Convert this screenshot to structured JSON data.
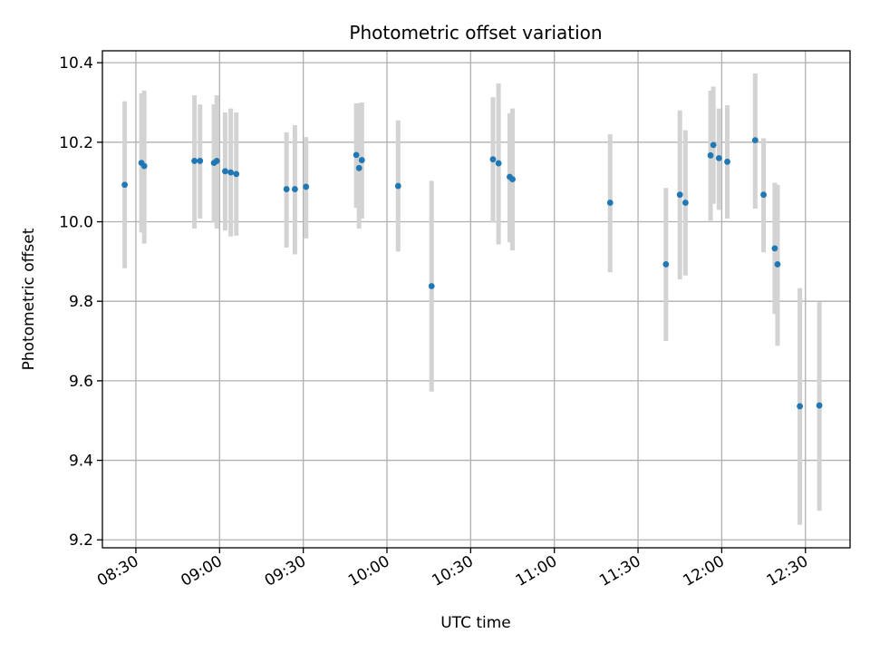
{
  "chart_data": {
    "type": "scatter",
    "title": "Photometric offset variation",
    "xlabel": "UTC time",
    "ylabel": "Photometric offset",
    "xlim": [
      "08:18",
      "12:46"
    ],
    "ylim": [
      9.18,
      10.43
    ],
    "grid": true,
    "x_ticks": [
      "08:30",
      "09:00",
      "09:30",
      "10:00",
      "10:30",
      "11:00",
      "11:30",
      "12:00",
      "12:30"
    ],
    "y_ticks": [
      9.2,
      9.4,
      9.6,
      9.8,
      10.0,
      10.2,
      10.4
    ],
    "y_tick_labels": [
      "9.2",
      "9.4",
      "9.6",
      "9.8",
      "10.0",
      "10.2",
      "10.4"
    ],
    "marker_color": "#1f77b4",
    "errorbar_color": "#d3d3d3",
    "points": [
      {
        "t": "08:26",
        "y": 10.093,
        "lo": 9.883,
        "hi": 10.303
      },
      {
        "t": "08:32",
        "y": 10.148,
        "lo": 9.973,
        "hi": 10.323
      },
      {
        "t": "08:33",
        "y": 10.14,
        "lo": 9.945,
        "hi": 10.33
      },
      {
        "t": "08:59",
        "y": 10.153,
        "lo": 9.983,
        "hi": 10.318
      },
      {
        "t": "08:51",
        "y": 10.153,
        "lo": 9.983,
        "hi": 10.318
      },
      {
        "t": "08:53",
        "y": 10.153,
        "lo": 10.008,
        "hi": 10.295
      },
      {
        "t": "08:58",
        "y": 10.148,
        "lo": 9.998,
        "hi": 10.295
      },
      {
        "t": "09:02",
        "y": 10.127,
        "lo": 9.978,
        "hi": 10.275
      },
      {
        "t": "09:04",
        "y": 10.124,
        "lo": 9.963,
        "hi": 10.285
      },
      {
        "t": "09:06",
        "y": 10.12,
        "lo": 9.965,
        "hi": 10.275
      },
      {
        "t": "09:24",
        "y": 10.082,
        "lo": 9.935,
        "hi": 10.225
      },
      {
        "t": "09:27",
        "y": 10.082,
        "lo": 9.918,
        "hi": 10.243
      },
      {
        "t": "09:31",
        "y": 10.088,
        "lo": 9.958,
        "hi": 10.213
      },
      {
        "t": "09:49",
        "y": 10.168,
        "lo": 10.035,
        "hi": 10.298
      },
      {
        "t": "09:50",
        "y": 10.135,
        "lo": 9.983,
        "hi": 10.298
      },
      {
        "t": "09:51",
        "y": 10.155,
        "lo": 10.008,
        "hi": 10.3
      },
      {
        "t": "10:04",
        "y": 10.09,
        "lo": 9.925,
        "hi": 10.255
      },
      {
        "t": "10:16",
        "y": 9.838,
        "lo": 9.573,
        "hi": 10.103
      },
      {
        "t": "10:38",
        "y": 10.157,
        "lo": 9.998,
        "hi": 10.313
      },
      {
        "t": "10:40",
        "y": 10.147,
        "lo": 9.943,
        "hi": 10.348
      },
      {
        "t": "10:44",
        "y": 10.113,
        "lo": 9.948,
        "hi": 10.273
      },
      {
        "t": "10:45",
        "y": 10.107,
        "lo": 9.928,
        "hi": 10.285
      },
      {
        "t": "11:20",
        "y": 10.048,
        "lo": 9.873,
        "hi": 10.22
      },
      {
        "t": "11:40",
        "y": 9.893,
        "lo": 9.7,
        "hi": 10.085
      },
      {
        "t": "11:45",
        "y": 10.068,
        "lo": 9.855,
        "hi": 10.28
      },
      {
        "t": "11:47",
        "y": 10.048,
        "lo": 9.865,
        "hi": 10.23
      },
      {
        "t": "11:56",
        "y": 10.167,
        "lo": 10.003,
        "hi": 10.33
      },
      {
        "t": "11:57",
        "y": 10.193,
        "lo": 10.045,
        "hi": 10.34
      },
      {
        "t": "11:59",
        "y": 10.16,
        "lo": 10.03,
        "hi": 10.285
      },
      {
        "t": "12:02",
        "y": 10.151,
        "lo": 10.008,
        "hi": 10.293
      },
      {
        "t": "12:12",
        "y": 10.205,
        "lo": 10.033,
        "hi": 10.373
      },
      {
        "t": "12:15",
        "y": 10.068,
        "lo": 9.923,
        "hi": 10.21
      },
      {
        "t": "12:19",
        "y": 9.933,
        "lo": 9.768,
        "hi": 10.098
      },
      {
        "t": "12:20",
        "y": 9.893,
        "lo": 9.688,
        "hi": 10.093
      },
      {
        "t": "12:28",
        "y": 9.536,
        "lo": 9.238,
        "hi": 9.833
      },
      {
        "t": "12:35",
        "y": 9.538,
        "lo": 9.273,
        "hi": 9.798
      }
    ]
  }
}
